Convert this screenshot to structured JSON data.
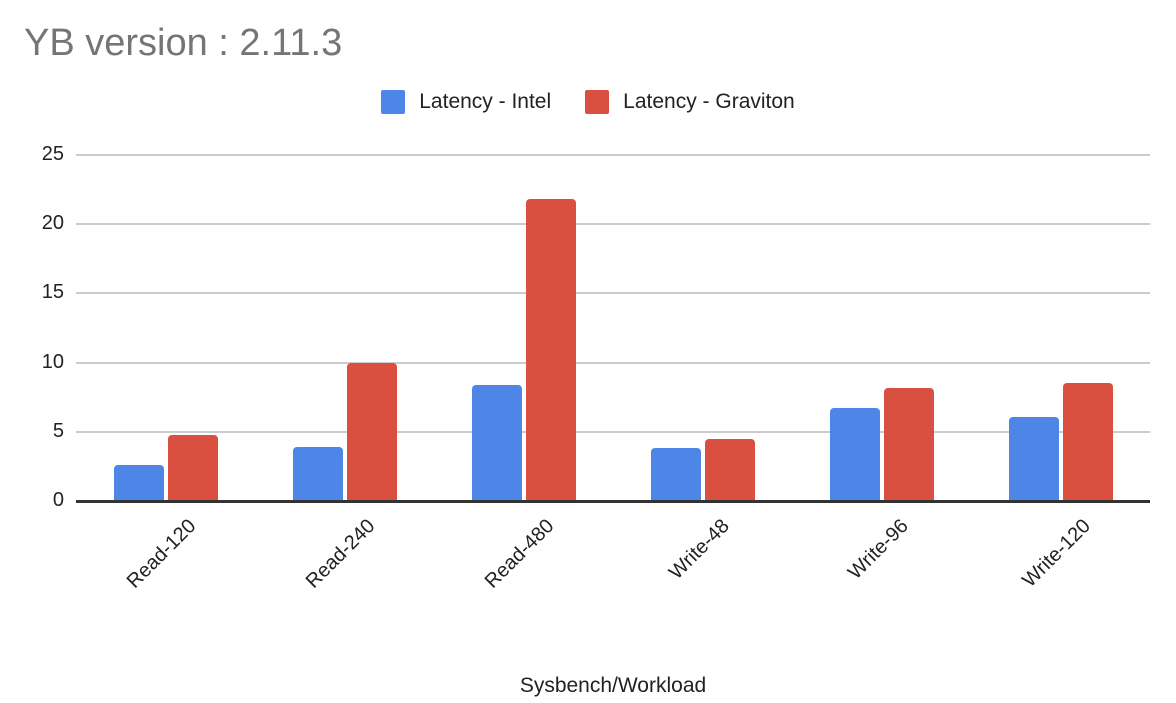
{
  "chart_data": {
    "type": "bar",
    "title": "YB version : 2.11.3",
    "xlabel": "Sysbench/Workload",
    "ylabel": "",
    "ylim": [
      0,
      25
    ],
    "yticks": [
      0,
      5,
      10,
      15,
      20,
      25
    ],
    "grid": true,
    "legend_position": "top",
    "categories": [
      "Read-120",
      "Read-240",
      "Read-480",
      "Write-48",
      "Write-96",
      "Write-120"
    ],
    "series": [
      {
        "name": "Latency - Intel",
        "color": "#4e86e8",
        "values": [
          2.6,
          3.9,
          8.4,
          3.8,
          6.7,
          6.1
        ]
      },
      {
        "name": "Latency - Graviton",
        "color": "#d95040",
        "values": [
          4.8,
          10.0,
          21.8,
          4.5,
          8.2,
          8.5
        ]
      }
    ]
  }
}
